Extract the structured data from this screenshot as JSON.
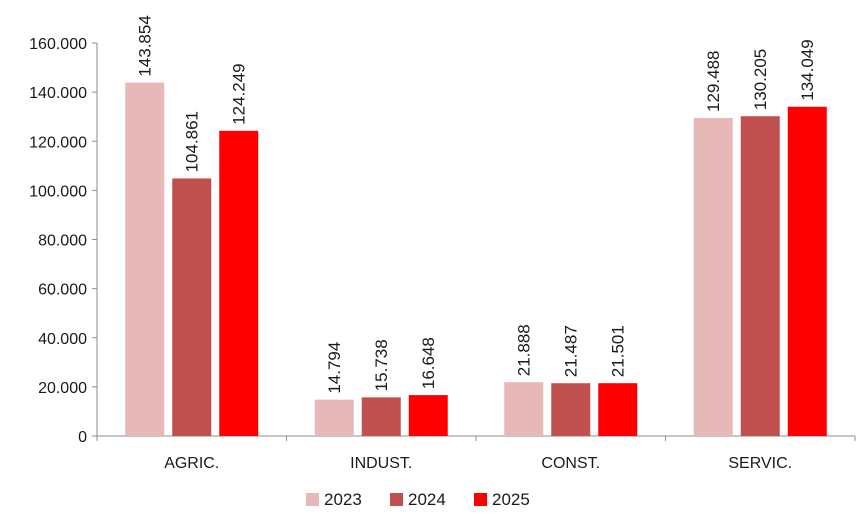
{
  "chart_data": {
    "type": "bar",
    "categories": [
      "AGRIC.",
      "INDUST.",
      "CONST.",
      "SERVIC."
    ],
    "series": [
      {
        "name": "2023",
        "color": "#e6b8b7",
        "values": [
          143854,
          14794,
          21888,
          129488
        ],
        "labels": [
          "143.854",
          "14.794",
          "21.888",
          "129.488"
        ]
      },
      {
        "name": "2024",
        "color": "#c0504d",
        "values": [
          104861,
          15738,
          21487,
          130205
        ],
        "labels": [
          "104.861",
          "15.738",
          "21.487",
          "130.205"
        ]
      },
      {
        "name": "2025",
        "color": "#ff0000",
        "values": [
          124249,
          16648,
          21501,
          134049
        ],
        "labels": [
          "124.249",
          "16.648",
          "21.501",
          "134.049"
        ]
      }
    ],
    "yticks": [
      0,
      20000,
      40000,
      60000,
      80000,
      100000,
      120000,
      140000,
      160000
    ],
    "ytick_labels": [
      "0",
      "20.000",
      "40.000",
      "60.000",
      "80.000",
      "100.000",
      "120.000",
      "140.000",
      "160.000"
    ],
    "ylim": [
      0,
      160000
    ],
    "grid": false,
    "legend_position": "bottom",
    "title": "",
    "xlabel": "",
    "ylabel": ""
  }
}
